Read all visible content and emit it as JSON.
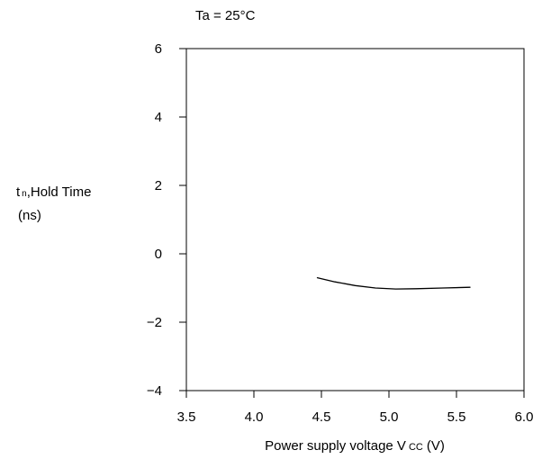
{
  "chart_data": {
    "type": "line",
    "annotation": "Ta = 25°C",
    "ylabel_line1_main": "t",
    "ylabel_line1_sub": "n",
    "ylabel_line1_rest": ",Hold Time",
    "ylabel_line2": "(ns)",
    "xlabel_main": "Power supply voltage V",
    "xlabel_sub": "CC",
    "xlabel_unit": "(V)",
    "xlim": [
      3.5,
      6.0
    ],
    "ylim": [
      -4,
      6
    ],
    "x_ticks": [
      3.5,
      4.0,
      4.5,
      5.0,
      5.5,
      6.0
    ],
    "x_tick_labels": [
      "3.5",
      "4.0",
      "4.5",
      "5.0",
      "5.5",
      "6.0"
    ],
    "y_ticks": [
      6,
      4,
      2,
      0,
      -2,
      -4
    ],
    "y_tick_labels": [
      "6",
      "4",
      "2",
      "0",
      "−2",
      "−4"
    ],
    "grid": false,
    "series": [
      {
        "x": [
          4.47,
          4.6,
          4.75,
          4.9,
          5.05,
          5.2,
          5.4,
          5.6
        ],
        "y": [
          -0.7,
          -0.82,
          -0.93,
          -1.0,
          -1.03,
          -1.02,
          -1.0,
          -0.98
        ]
      }
    ]
  }
}
